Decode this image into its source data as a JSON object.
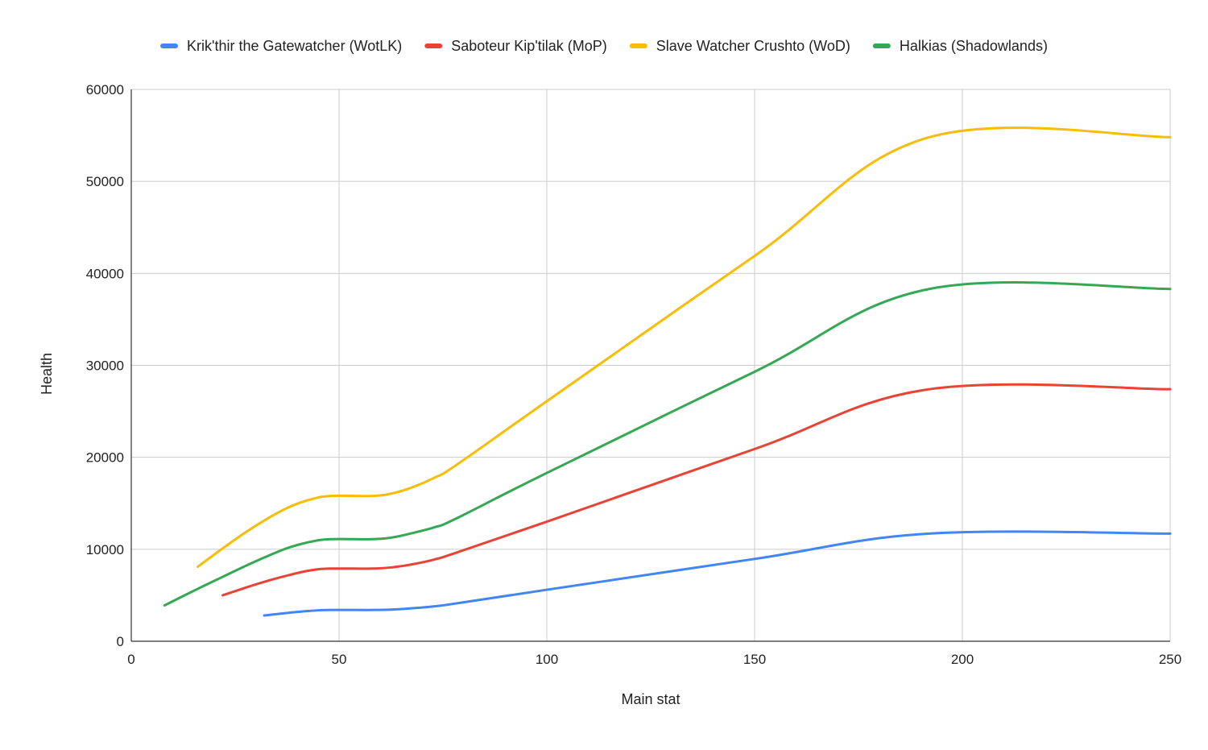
{
  "chart_data": {
    "type": "line",
    "title": "",
    "xlabel": "Main stat",
    "ylabel": "Health",
    "xlim": [
      0,
      250
    ],
    "ylim": [
      0,
      60000
    ],
    "x_ticks": [
      0,
      50,
      100,
      150,
      200,
      250
    ],
    "y_ticks": [
      0,
      10000,
      20000,
      30000,
      40000,
      50000,
      60000
    ],
    "grid": true,
    "legend_position": "top",
    "series": [
      {
        "name": "Krik'thir the Gatewatcher (WotLK)",
        "color": "#4285f4",
        "points": [
          [
            32,
            2800
          ],
          [
            38,
            3100
          ],
          [
            43,
            3300
          ],
          [
            48,
            3400
          ],
          [
            58,
            3400
          ],
          [
            63,
            3450
          ],
          [
            68,
            3600
          ],
          [
            73,
            3800
          ],
          [
            78,
            4100
          ],
          [
            100,
            5600
          ],
          [
            150,
            8950
          ],
          [
            192,
            11700
          ],
          [
            250,
            11700
          ]
        ]
      },
      {
        "name": "Saboteur Kip'tilak (MoP)",
        "color": "#ea4335",
        "points": [
          [
            22,
            5000
          ],
          [
            28,
            5900
          ],
          [
            33,
            6600
          ],
          [
            38,
            7200
          ],
          [
            43,
            7700
          ],
          [
            48,
            7900
          ],
          [
            58,
            7900
          ],
          [
            63,
            8050
          ],
          [
            68,
            8400
          ],
          [
            73,
            8900
          ],
          [
            78,
            9600
          ],
          [
            100,
            13000
          ],
          [
            150,
            20900
          ],
          [
            192,
            27400
          ],
          [
            250,
            27400
          ]
        ]
      },
      {
        "name": "Slave Watcher Crushto (WoD)",
        "color": "#fbbc04",
        "points": [
          [
            16,
            8100
          ],
          [
            22,
            10100
          ],
          [
            28,
            12000
          ],
          [
            33,
            13400
          ],
          [
            38,
            14600
          ],
          [
            43,
            15400
          ],
          [
            48,
            15800
          ],
          [
            58,
            15800
          ],
          [
            63,
            16100
          ],
          [
            68,
            16800
          ],
          [
            73,
            17800
          ],
          [
            78,
            19100
          ],
          [
            100,
            26100
          ],
          [
            150,
            41900
          ],
          [
            192,
            54800
          ],
          [
            250,
            54800
          ]
        ]
      },
      {
        "name": "Halkias (Shadowlands)",
        "color": "#34a853",
        "points": [
          [
            8,
            3900
          ],
          [
            16,
            5700
          ],
          [
            22,
            7000
          ],
          [
            28,
            8300
          ],
          [
            33,
            9300
          ],
          [
            38,
            10200
          ],
          [
            43,
            10800
          ],
          [
            48,
            11100
          ],
          [
            58,
            11100
          ],
          [
            63,
            11300
          ],
          [
            68,
            11800
          ],
          [
            73,
            12400
          ],
          [
            78,
            13300
          ],
          [
            100,
            18300
          ],
          [
            150,
            29300
          ],
          [
            192,
            38300
          ],
          [
            250,
            38300
          ]
        ]
      }
    ]
  }
}
